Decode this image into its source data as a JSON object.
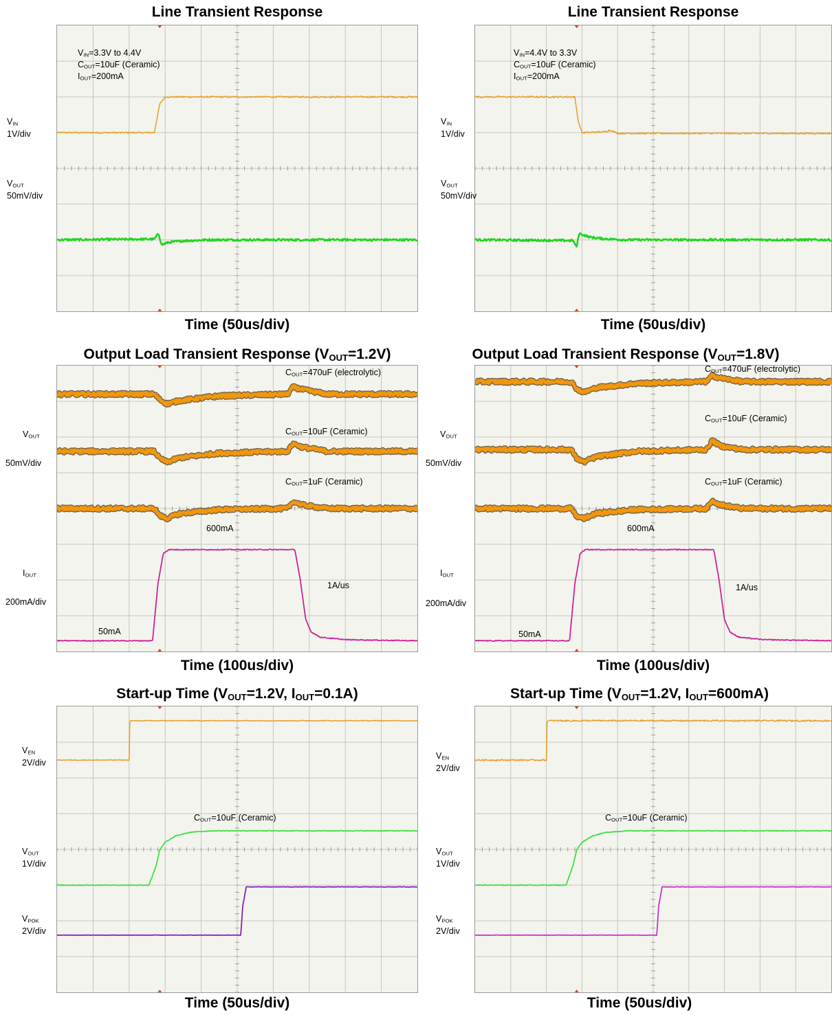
{
  "chart_data": [
    {
      "type": "line",
      "title": "Line Transient Response",
      "xlabel": "Time (50us/div)",
      "divisions": {
        "x": 10,
        "y": 8
      },
      "annotations": [
        {
          "id": "vin-cond",
          "main": "V",
          "sub": "IN",
          "rest": "=3.3V to 4.4V"
        },
        {
          "id": "cout-cond",
          "main": "C",
          "sub": "OUT",
          "rest": "=10uF (Ceramic)"
        },
        {
          "id": "iout-cond",
          "main": "I",
          "sub": "OUT",
          "rest": "=200mA"
        }
      ],
      "channel_labels": [
        {
          "id": "vin",
          "main": "V",
          "sub": "IN",
          "scale": "1V/div"
        },
        {
          "id": "vout",
          "main": "V",
          "sub": "OUT",
          "scale": "50mV/div"
        }
      ],
      "series": [
        {
          "color": "#e8a030",
          "width": 1.6,
          "noise": 0.02,
          "x": [
            0,
            2.7,
            2.85,
            3.0,
            10
          ],
          "y": [
            5.0,
            5.0,
            5.8,
            6.0,
            6.0
          ]
        },
        {
          "color": "#22d422",
          "width": 2.6,
          "noise": 0.03,
          "x": [
            0,
            2.7,
            2.82,
            2.9,
            3.1,
            3.5,
            4.2,
            10
          ],
          "y": [
            2.0,
            2.02,
            2.18,
            1.86,
            1.93,
            1.97,
            2.0,
            2.0
          ]
        }
      ]
    },
    {
      "type": "line",
      "title": "Line Transient Response",
      "xlabel": "Time (50us/div)",
      "divisions": {
        "x": 10,
        "y": 8
      },
      "annotations": [
        {
          "id": "vin-cond",
          "main": "V",
          "sub": "IN",
          "rest": "=4.4V to 3.3V"
        },
        {
          "id": "cout-cond",
          "main": "C",
          "sub": "OUT",
          "rest": "=10uF (Ceramic)"
        },
        {
          "id": "iout-cond",
          "main": "I",
          "sub": "OUT",
          "rest": "=200mA"
        }
      ],
      "channel_labels": [
        {
          "id": "vin",
          "main": "V",
          "sub": "IN",
          "scale": "1V/div"
        },
        {
          "id": "vout",
          "main": "V",
          "sub": "OUT",
          "scale": "50mV/div"
        }
      ],
      "series": [
        {
          "color": "#e8a030",
          "width": 1.6,
          "noise": 0.02,
          "x": [
            0,
            2.8,
            2.9,
            3.0,
            3.6,
            3.8,
            4.0,
            10
          ],
          "y": [
            6.0,
            6.0,
            5.3,
            5.0,
            5.02,
            5.07,
            4.98,
            4.98
          ]
        },
        {
          "color": "#22d422",
          "width": 2.6,
          "noise": 0.03,
          "x": [
            0,
            2.75,
            2.85,
            2.92,
            3.2,
            3.6,
            4.2,
            10
          ],
          "y": [
            2.0,
            1.98,
            1.8,
            2.18,
            2.08,
            2.03,
            2.0,
            2.0
          ]
        }
      ]
    },
    {
      "type": "line",
      "title": "Output Load Transient Response (V",
      "title_sub": "OUT",
      "title_rest": "=1.2V)",
      "xlabel": "Time (100us/div)",
      "divisions": {
        "x": 10,
        "y": 8
      },
      "annotations": [
        {
          "id": "cout-470",
          "main": "C",
          "sub": "OUT",
          "rest": "=470uF (electrolytic)"
        },
        {
          "id": "cout-10",
          "main": "C",
          "sub": "OUT",
          "rest": "=10uF (Ceramic)"
        },
        {
          "id": "cout-1",
          "main": "C",
          "sub": "OUT",
          "rest": "=1uF (Ceramic)"
        },
        {
          "id": "i-high",
          "main": "600mA",
          "sub": "",
          "rest": ""
        },
        {
          "id": "slew",
          "main": "1A/us",
          "sub": "",
          "rest": ""
        },
        {
          "id": "i-low",
          "main": "50mA",
          "sub": "",
          "rest": ""
        }
      ],
      "channel_labels": [
        {
          "id": "vout",
          "main": "V",
          "sub": "OUT",
          "scale": ""
        },
        {
          "id": "vout-scale",
          "main": "50mV/div",
          "sub": "",
          "scale": ""
        },
        {
          "id": "iout",
          "main": "I",
          "sub": "OUT",
          "scale": ""
        },
        {
          "id": "iout-scale",
          "main": "200mA/div",
          "sub": "",
          "scale": ""
        }
      ],
      "series": [
        {
          "color": "#f0960f",
          "width": 4.5,
          "noise": 0.05,
          "edge": true,
          "x": [
            0,
            2.7,
            2.85,
            3.05,
            3.4,
            4.5,
            6.4,
            6.55,
            6.8,
            7.5,
            10
          ],
          "y": [
            7.2,
            7.2,
            7.05,
            6.93,
            7.02,
            7.15,
            7.2,
            7.4,
            7.33,
            7.2,
            7.2
          ]
        },
        {
          "color": "#f0960f",
          "width": 4.5,
          "noise": 0.05,
          "edge": true,
          "x": [
            0,
            2.7,
            2.85,
            3.05,
            3.4,
            4.5,
            6.4,
            6.55,
            6.8,
            7.5,
            10
          ],
          "y": [
            5.6,
            5.6,
            5.4,
            5.3,
            5.42,
            5.55,
            5.6,
            5.82,
            5.72,
            5.6,
            5.6
          ]
        },
        {
          "color": "#f0960f",
          "width": 4.5,
          "noise": 0.05,
          "edge": true,
          "x": [
            0,
            2.7,
            2.85,
            3.05,
            3.4,
            4.5,
            6.4,
            6.55,
            6.8,
            7.5,
            10
          ],
          "y": [
            4.0,
            4.0,
            3.8,
            3.72,
            3.86,
            3.97,
            4.0,
            4.2,
            4.1,
            4.0,
            4.0
          ]
        },
        {
          "color": "#cc2299",
          "width": 1.8,
          "noise": 0.012,
          "x": [
            0,
            2.65,
            2.8,
            2.95,
            3.1,
            6.6,
            6.75,
            6.9,
            7.05,
            7.3,
            8.0,
            10
          ],
          "y": [
            0.3,
            0.3,
            1.9,
            2.75,
            2.85,
            2.85,
            2.0,
            0.9,
            0.55,
            0.4,
            0.33,
            0.3
          ]
        }
      ]
    },
    {
      "type": "line",
      "title": "Output Load Transient Response (V",
      "title_sub": "OUT",
      "title_rest": "=1.8V)",
      "xlabel": "Time (100us/div)",
      "divisions": {
        "x": 10,
        "y": 8
      },
      "annotations": [
        {
          "id": "cout-470",
          "main": "C",
          "sub": "OUT",
          "rest": "=470uF (electrolytic)"
        },
        {
          "id": "cout-10",
          "main": "C",
          "sub": "OUT",
          "rest": "=10uF (Ceramic)"
        },
        {
          "id": "cout-1",
          "main": "C",
          "sub": "OUT",
          "rest": "=1uF (Ceramic)"
        },
        {
          "id": "i-high",
          "main": "600mA",
          "sub": "",
          "rest": ""
        },
        {
          "id": "slew",
          "main": "1A/us",
          "sub": "",
          "rest": ""
        },
        {
          "id": "i-low",
          "main": "50mA",
          "sub": "",
          "rest": ""
        }
      ],
      "channel_labels": [
        {
          "id": "vout",
          "main": "V",
          "sub": "OUT",
          "scale": ""
        },
        {
          "id": "vout-scale",
          "main": "50mV/div",
          "sub": "",
          "scale": ""
        },
        {
          "id": "iout",
          "main": "I",
          "sub": "OUT",
          "scale": ""
        },
        {
          "id": "iout-scale",
          "main": "200mA/div",
          "sub": "",
          "scale": ""
        }
      ],
      "series": [
        {
          "color": "#f0960f",
          "width": 4.5,
          "noise": 0.05,
          "edge": true,
          "x": [
            0,
            2.7,
            2.85,
            3.05,
            3.4,
            4.5,
            6.5,
            6.65,
            6.9,
            7.5,
            10
          ],
          "y": [
            7.55,
            7.55,
            7.35,
            7.25,
            7.38,
            7.5,
            7.55,
            7.72,
            7.65,
            7.55,
            7.55
          ]
        },
        {
          "color": "#f0960f",
          "width": 4.5,
          "noise": 0.05,
          "edge": true,
          "x": [
            0,
            2.7,
            2.85,
            3.05,
            3.4,
            4.5,
            6.5,
            6.65,
            6.9,
            7.5,
            10
          ],
          "y": [
            5.65,
            5.65,
            5.4,
            5.3,
            5.45,
            5.6,
            5.65,
            5.9,
            5.75,
            5.65,
            5.65
          ]
        },
        {
          "color": "#f0960f",
          "width": 4.5,
          "noise": 0.05,
          "edge": true,
          "x": [
            0,
            2.7,
            2.85,
            3.05,
            3.4,
            4.5,
            6.5,
            6.65,
            6.9,
            7.5,
            10
          ],
          "y": [
            4.0,
            4.0,
            3.78,
            3.72,
            3.86,
            3.97,
            4.0,
            4.22,
            4.1,
            4.0,
            4.0
          ]
        },
        {
          "color": "#cc2299",
          "width": 1.8,
          "noise": 0.012,
          "x": [
            0,
            2.65,
            2.8,
            2.95,
            3.1,
            6.7,
            6.85,
            7.0,
            7.15,
            7.4,
            8.1,
            10
          ],
          "y": [
            0.3,
            0.3,
            1.9,
            2.75,
            2.85,
            2.85,
            2.0,
            0.9,
            0.55,
            0.4,
            0.33,
            0.3
          ]
        }
      ]
    },
    {
      "type": "line",
      "title": "Start-up Time (V",
      "title_sub": "OUT",
      "title_rest": "=1.2V, I",
      "title_sub2": "OUT",
      "title_rest2": "=0.1A)",
      "xlabel": "Time (50us/div)",
      "divisions": {
        "x": 10,
        "y": 8
      },
      "annotations": [
        {
          "id": "cout-10",
          "main": "C",
          "sub": "OUT",
          "rest": "=10uF (Ceramic)"
        }
      ],
      "channel_labels": [
        {
          "id": "ven",
          "main": "V",
          "sub": "EN",
          "scale": "2V/div"
        },
        {
          "id": "vout",
          "main": "V",
          "sub": "OUT",
          "scale": "1V/div"
        },
        {
          "id": "vpok",
          "main": "V",
          "sub": "POK",
          "scale": "2V/div"
        }
      ],
      "series": [
        {
          "color": "#e8a030",
          "width": 1.6,
          "noise": 0.01,
          "x": [
            0,
            2.0,
            2.02,
            10
          ],
          "y": [
            6.5,
            6.5,
            7.6,
            7.6
          ]
        },
        {
          "color": "#44dd44",
          "width": 1.8,
          "noise": 0.01,
          "x": [
            0,
            2.55,
            2.75,
            2.85,
            3.0,
            3.3,
            3.7,
            4.3,
            10
          ],
          "y": [
            3.0,
            3.0,
            3.55,
            3.98,
            4.2,
            4.38,
            4.48,
            4.52,
            4.52
          ]
        },
        {
          "color": "#8822bb",
          "width": 1.8,
          "noise": 0.006,
          "x": [
            0,
            5.1,
            5.15,
            5.25,
            10
          ],
          "y": [
            1.6,
            1.6,
            2.4,
            2.95,
            2.95
          ]
        }
      ]
    },
    {
      "type": "line",
      "title": "Start-up Time (V",
      "title_sub": "OUT",
      "title_rest": "=1.2V, I",
      "title_sub2": "OUT",
      "title_rest2": "=600mA)",
      "xlabel": "Time (50us/div)",
      "divisions": {
        "x": 10,
        "y": 8
      },
      "annotations": [
        {
          "id": "cout-10",
          "main": "C",
          "sub": "OUT",
          "rest": "=10uF (Ceramic)"
        }
      ],
      "channel_labels": [
        {
          "id": "ven",
          "main": "V",
          "sub": "EN",
          "scale": "2V/div"
        },
        {
          "id": "vout",
          "main": "V",
          "sub": "OUT",
          "scale": "1V/div"
        },
        {
          "id": "vpok",
          "main": "V",
          "sub": "POK",
          "scale": "2V/div"
        }
      ],
      "series": [
        {
          "color": "#e8a030",
          "width": 1.6,
          "noise": 0.02,
          "x": [
            0,
            2.0,
            2.02,
            10
          ],
          "y": [
            6.5,
            6.5,
            7.6,
            7.6
          ]
        },
        {
          "color": "#44dd44",
          "width": 1.8,
          "noise": 0.01,
          "x": [
            0,
            2.55,
            2.75,
            2.85,
            3.0,
            3.3,
            3.7,
            4.3,
            10
          ],
          "y": [
            3.0,
            3.0,
            3.55,
            3.98,
            4.2,
            4.38,
            4.48,
            4.52,
            4.52
          ]
        },
        {
          "color": "#cc33cc",
          "width": 1.8,
          "noise": 0.006,
          "x": [
            0,
            5.1,
            5.15,
            5.25,
            10
          ],
          "y": [
            1.6,
            1.6,
            2.4,
            2.95,
            2.95
          ]
        }
      ]
    }
  ]
}
